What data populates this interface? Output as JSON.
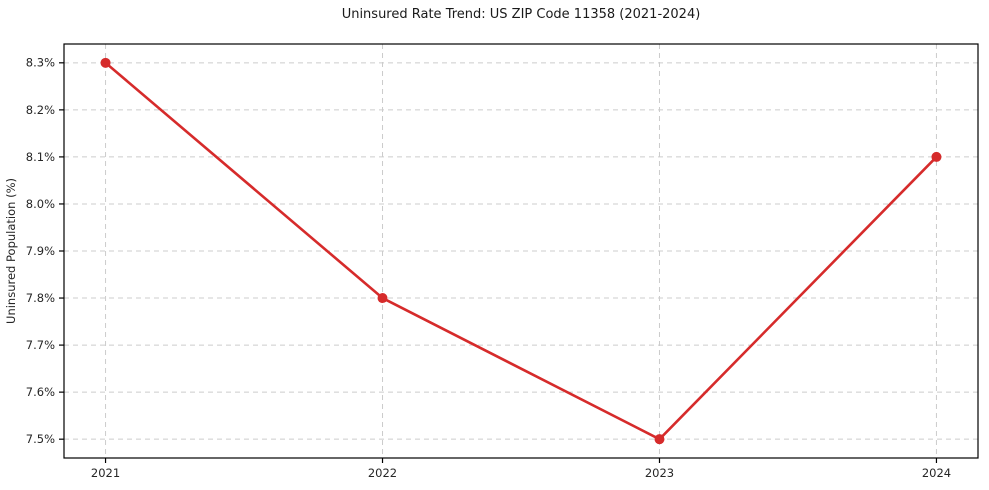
{
  "chart_data": {
    "type": "line",
    "title": "Uninsured Rate Trend: US ZIP Code 11358 (2021-2024)",
    "xlabel": "",
    "ylabel": "Uninsured Population (%)",
    "x": [
      2021,
      2022,
      2023,
      2024
    ],
    "values": [
      8.3,
      7.8,
      7.5,
      8.1
    ],
    "xtick_labels": [
      "2021",
      "2022",
      "2023",
      "2024"
    ],
    "yticks": [
      7.5,
      7.6,
      7.7,
      7.8,
      7.9,
      8.0,
      8.1,
      8.2,
      8.3
    ],
    "ytick_labels": [
      "7.5%",
      "7.6%",
      "7.7%",
      "7.8%",
      "7.9%",
      "8.0%",
      "8.1%",
      "8.2%",
      "8.3%"
    ],
    "xlim": [
      2020.85,
      2024.15
    ],
    "ylim": [
      7.46,
      8.34
    ],
    "grid": true,
    "legend": "none",
    "line_color": "#d62b2b",
    "marker_color": "#d62b2b",
    "grid_color": "#cccccc",
    "axis_color": "#000000",
    "tick_label_color": "#262626"
  }
}
